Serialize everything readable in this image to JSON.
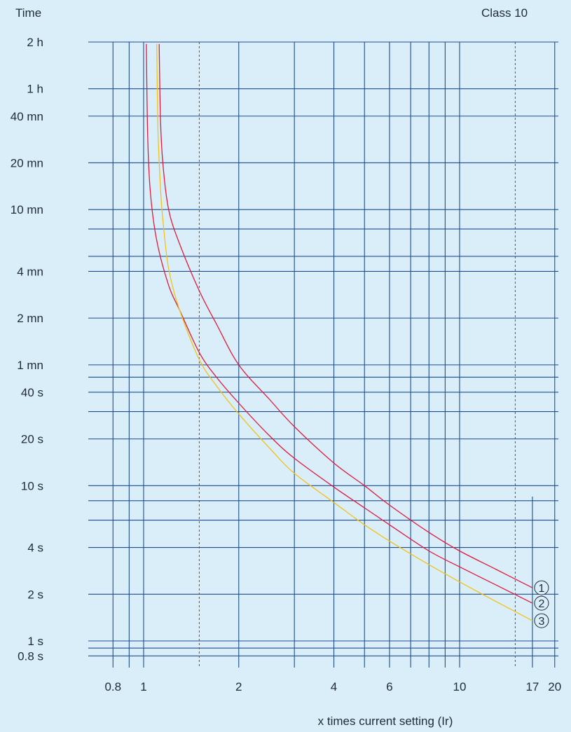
{
  "chart_data": {
    "type": "line",
    "title": "Class 10",
    "ylabel": "Time",
    "xlabel": "x times current setting (Ir)",
    "x_scale": "log",
    "y_scale": "log",
    "xlim": [
      0.75,
      20
    ],
    "ylim_seconds": [
      0.8,
      7200
    ],
    "x_ticks": [
      {
        "label": "0.8",
        "value": 0.8
      },
      {
        "label": "1",
        "value": 1
      },
      {
        "label": "2",
        "value": 2
      },
      {
        "label": "4",
        "value": 4
      },
      {
        "label": "6",
        "value": 6
      },
      {
        "label": "10",
        "value": 10
      },
      {
        "label": "17",
        "value": 17
      },
      {
        "label": "20",
        "value": 20
      }
    ],
    "x_grid": [
      0.8,
      0.9,
      1,
      1.5,
      2,
      3,
      4,
      5,
      6,
      7,
      8,
      9,
      10,
      15,
      17,
      20
    ],
    "x_grid_dashed": [
      1.5,
      15
    ],
    "y_ticks": [
      {
        "label": "2 h",
        "value": 7200
      },
      {
        "label": "1 h",
        "value": 3600
      },
      {
        "label": "40 mn",
        "value": 2400
      },
      {
        "label": "20 mn",
        "value": 1200
      },
      {
        "label": "10 mn",
        "value": 600
      },
      {
        "label": "4 mn",
        "value": 240
      },
      {
        "label": "2 mn",
        "value": 120
      },
      {
        "label": "1 mn",
        "value": 60
      },
      {
        "label": "40 s",
        "value": 40
      },
      {
        "label": "20 s",
        "value": 20
      },
      {
        "label": "10 s",
        "value": 10
      },
      {
        "label": "4 s",
        "value": 4
      },
      {
        "label": "2 s",
        "value": 2
      },
      {
        "label": "1 s",
        "value": 1
      },
      {
        "label": "0.8 s",
        "value": 0.8
      }
    ],
    "y_grid_extra": [
      450,
      300,
      50,
      30,
      8,
      6,
      0.9
    ],
    "series": [
      {
        "name": "1",
        "color": "#e01a3c",
        "x": [
          1.12,
          1.13,
          1.15,
          1.2,
          1.3,
          1.5,
          1.7,
          2,
          2.5,
          3,
          4,
          5,
          6,
          8,
          10,
          13,
          17
        ],
        "y": [
          7000,
          2400,
          1200,
          600,
          360,
          180,
          110,
          60,
          36,
          24,
          14,
          10,
          7.5,
          5,
          3.8,
          2.9,
          2.2
        ]
      },
      {
        "name": "2",
        "color": "#e01a3c",
        "x": [
          1.02,
          1.03,
          1.05,
          1.1,
          1.2,
          1.3,
          1.5,
          1.7,
          2,
          2.5,
          3,
          4,
          5,
          6,
          8,
          10,
          13,
          17
        ],
        "y": [
          7000,
          1800,
          780,
          380,
          195,
          135,
          72,
          50,
          34,
          21,
          15,
          9.8,
          7.2,
          5.6,
          3.8,
          3.0,
          2.3,
          1.75
        ]
      },
      {
        "name": "3",
        "color": "#f2c21a",
        "x": [
          1.1,
          1.11,
          1.13,
          1.15,
          1.2,
          1.3,
          1.5,
          1.7,
          2,
          2.5,
          3,
          4,
          5,
          6,
          8,
          10,
          13,
          17
        ],
        "y": [
          7000,
          2000,
          850,
          520,
          250,
          135,
          65,
          44,
          29,
          17.5,
          12,
          7.8,
          5.6,
          4.4,
          3.1,
          2.4,
          1.8,
          1.35
        ]
      }
    ],
    "legend": "curve ends, circled numbers",
    "grid": true
  }
}
